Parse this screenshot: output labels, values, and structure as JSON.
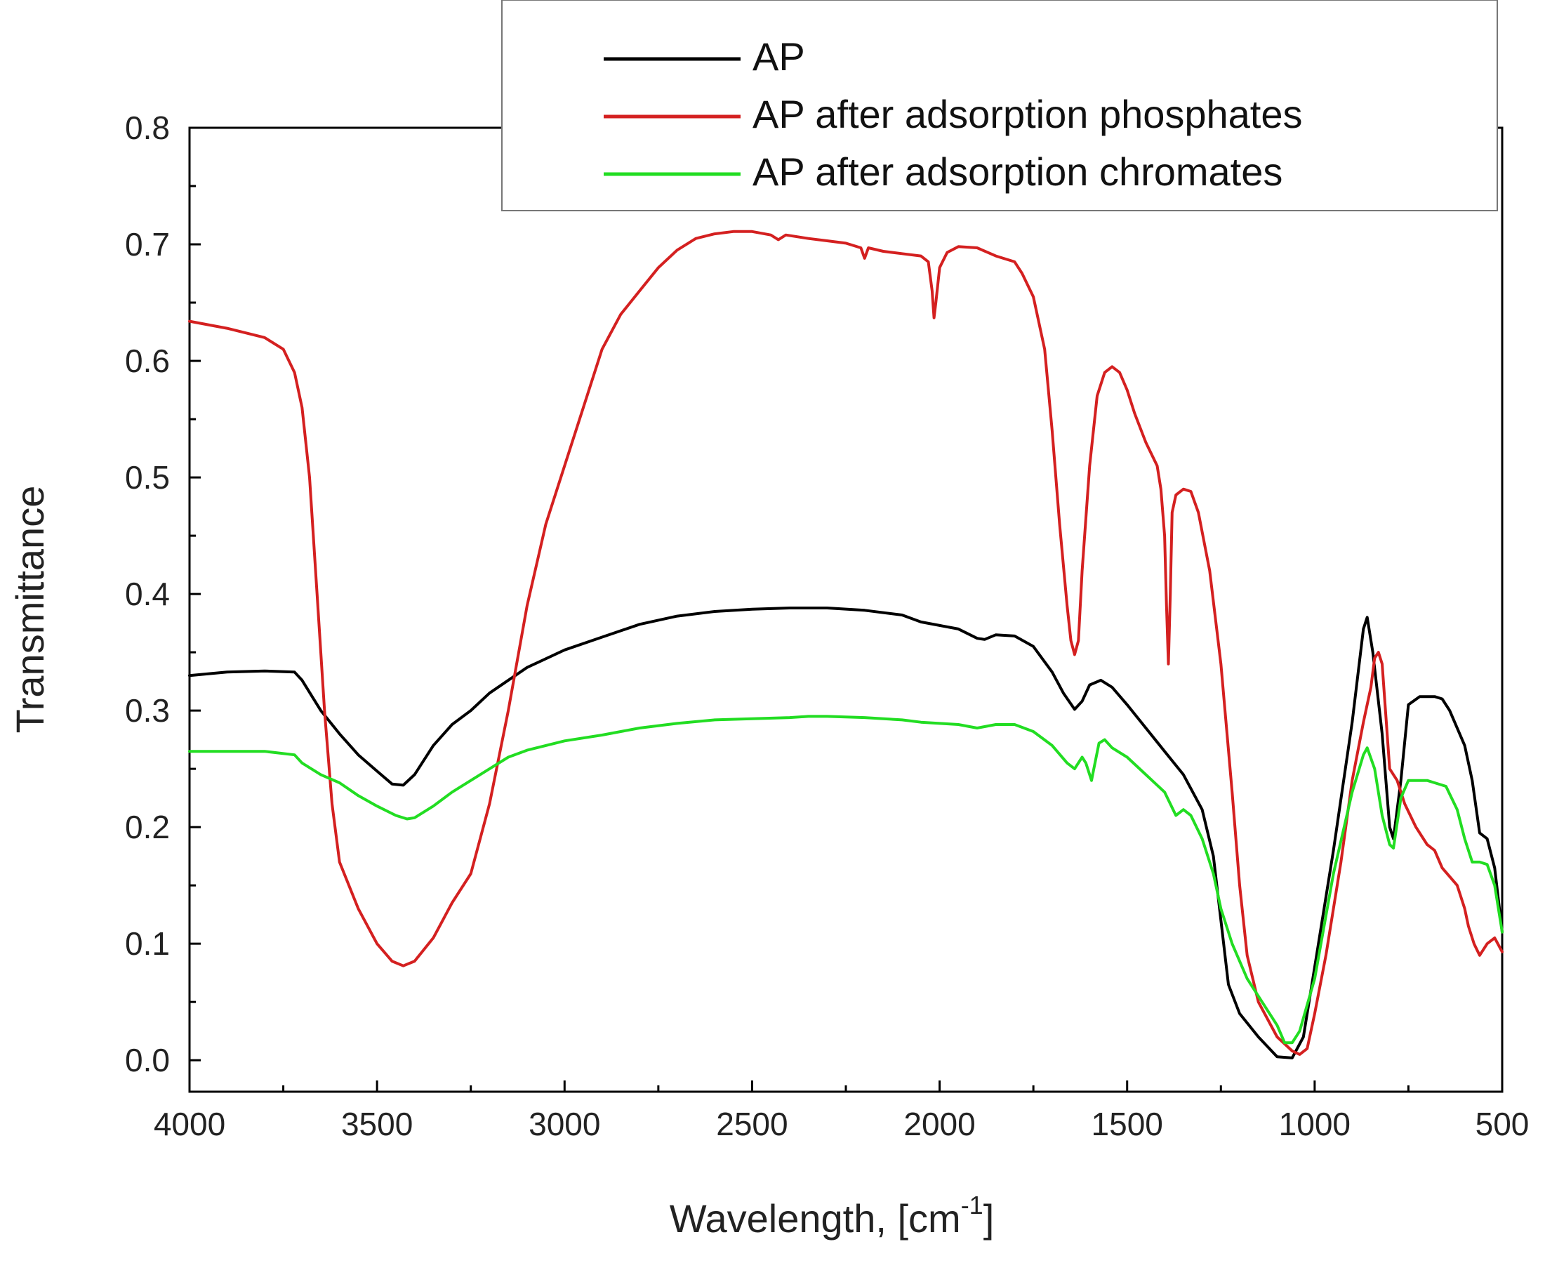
{
  "chart_data": {
    "type": "line",
    "title": "",
    "xlabel": "Wavelength, [cm",
    "xlabel_sup": "-1",
    "xlabel_suffix": "]",
    "ylabel": "Transmittance",
    "xlim": [
      4000,
      500
    ],
    "ylim": [
      -0.027,
      0.8
    ],
    "x_reversed": true,
    "grid": false,
    "legend_position": "top-right",
    "x_ticks": [
      4000,
      3500,
      3000,
      2500,
      2000,
      1500,
      1000,
      500
    ],
    "x_tick_labels": [
      "4000",
      "3500",
      "3000",
      "2500",
      "2000",
      "1500",
      "1000",
      "500"
    ],
    "y_ticks": [
      0.0,
      0.1,
      0.2,
      0.3,
      0.4,
      0.5,
      0.6,
      0.7,
      0.8
    ],
    "y_tick_labels": [
      "0.0",
      "0.1",
      "0.2",
      "0.3",
      "0.4",
      "0.5",
      "0.6",
      "0.7",
      "0.8"
    ],
    "series": [
      {
        "name": "AP",
        "color": "#000000",
        "points": [
          [
            4000,
            0.33
          ],
          [
            3900,
            0.333
          ],
          [
            3800,
            0.334
          ],
          [
            3720,
            0.333
          ],
          [
            3700,
            0.326
          ],
          [
            3650,
            0.3
          ],
          [
            3600,
            0.28
          ],
          [
            3550,
            0.262
          ],
          [
            3500,
            0.248
          ],
          [
            3460,
            0.237
          ],
          [
            3430,
            0.236
          ],
          [
            3400,
            0.245
          ],
          [
            3350,
            0.27
          ],
          [
            3300,
            0.288
          ],
          [
            3250,
            0.3
          ],
          [
            3200,
            0.315
          ],
          [
            3100,
            0.337
          ],
          [
            3000,
            0.352
          ],
          [
            2900,
            0.363
          ],
          [
            2800,
            0.374
          ],
          [
            2700,
            0.381
          ],
          [
            2600,
            0.385
          ],
          [
            2500,
            0.387
          ],
          [
            2400,
            0.388
          ],
          [
            2350,
            0.388
          ],
          [
            2300,
            0.388
          ],
          [
            2200,
            0.386
          ],
          [
            2100,
            0.382
          ],
          [
            2050,
            0.376
          ],
          [
            2000,
            0.373
          ],
          [
            1950,
            0.37
          ],
          [
            1900,
            0.362
          ],
          [
            1880,
            0.361
          ],
          [
            1850,
            0.365
          ],
          [
            1800,
            0.364
          ],
          [
            1750,
            0.355
          ],
          [
            1700,
            0.333
          ],
          [
            1670,
            0.315
          ],
          [
            1640,
            0.301
          ],
          [
            1620,
            0.308
          ],
          [
            1600,
            0.322
          ],
          [
            1570,
            0.326
          ],
          [
            1540,
            0.32
          ],
          [
            1500,
            0.305
          ],
          [
            1450,
            0.285
          ],
          [
            1400,
            0.265
          ],
          [
            1350,
            0.245
          ],
          [
            1300,
            0.215
          ],
          [
            1270,
            0.175
          ],
          [
            1250,
            0.12
          ],
          [
            1230,
            0.065
          ],
          [
            1200,
            0.04
          ],
          [
            1150,
            0.02
          ],
          [
            1100,
            0.003
          ],
          [
            1060,
            0.002
          ],
          [
            1030,
            0.02
          ],
          [
            1000,
            0.08
          ],
          [
            950,
            0.18
          ],
          [
            900,
            0.29
          ],
          [
            870,
            0.37
          ],
          [
            860,
            0.38
          ],
          [
            845,
            0.35
          ],
          [
            820,
            0.28
          ],
          [
            800,
            0.2
          ],
          [
            790,
            0.19
          ],
          [
            770,
            0.24
          ],
          [
            750,
            0.305
          ],
          [
            720,
            0.312
          ],
          [
            700,
            0.312
          ],
          [
            680,
            0.312
          ],
          [
            660,
            0.31
          ],
          [
            640,
            0.3
          ],
          [
            600,
            0.27
          ],
          [
            580,
            0.24
          ],
          [
            560,
            0.195
          ],
          [
            540,
            0.19
          ],
          [
            520,
            0.165
          ],
          [
            500,
            0.11
          ]
        ]
      },
      {
        "name": "AP after adsorption phosphates",
        "color": "#d42020",
        "points": [
          [
            4000,
            0.634
          ],
          [
            3900,
            0.628
          ],
          [
            3800,
            0.62
          ],
          [
            3750,
            0.61
          ],
          [
            3720,
            0.59
          ],
          [
            3700,
            0.56
          ],
          [
            3680,
            0.5
          ],
          [
            3660,
            0.4
          ],
          [
            3640,
            0.3
          ],
          [
            3620,
            0.22
          ],
          [
            3600,
            0.17
          ],
          [
            3550,
            0.13
          ],
          [
            3500,
            0.1
          ],
          [
            3460,
            0.085
          ],
          [
            3430,
            0.081
          ],
          [
            3400,
            0.085
          ],
          [
            3350,
            0.105
          ],
          [
            3300,
            0.135
          ],
          [
            3250,
            0.16
          ],
          [
            3200,
            0.22
          ],
          [
            3150,
            0.3
          ],
          [
            3100,
            0.39
          ],
          [
            3050,
            0.46
          ],
          [
            3000,
            0.51
          ],
          [
            2950,
            0.56
          ],
          [
            2900,
            0.61
          ],
          [
            2850,
            0.64
          ],
          [
            2800,
            0.66
          ],
          [
            2750,
            0.68
          ],
          [
            2700,
            0.695
          ],
          [
            2650,
            0.705
          ],
          [
            2600,
            0.709
          ],
          [
            2550,
            0.711
          ],
          [
            2500,
            0.711
          ],
          [
            2450,
            0.708
          ],
          [
            2430,
            0.704
          ],
          [
            2410,
            0.708
          ],
          [
            2350,
            0.705
          ],
          [
            2300,
            0.703
          ],
          [
            2250,
            0.701
          ],
          [
            2210,
            0.697
          ],
          [
            2200,
            0.688
          ],
          [
            2190,
            0.697
          ],
          [
            2150,
            0.694
          ],
          [
            2100,
            0.692
          ],
          [
            2050,
            0.69
          ],
          [
            2030,
            0.685
          ],
          [
            2020,
            0.66
          ],
          [
            2015,
            0.637
          ],
          [
            2010,
            0.65
          ],
          [
            2000,
            0.68
          ],
          [
            1980,
            0.693
          ],
          [
            1950,
            0.698
          ],
          [
            1900,
            0.697
          ],
          [
            1850,
            0.69
          ],
          [
            1800,
            0.685
          ],
          [
            1780,
            0.675
          ],
          [
            1750,
            0.655
          ],
          [
            1720,
            0.61
          ],
          [
            1700,
            0.54
          ],
          [
            1680,
            0.46
          ],
          [
            1660,
            0.39
          ],
          [
            1650,
            0.36
          ],
          [
            1640,
            0.348
          ],
          [
            1630,
            0.36
          ],
          [
            1620,
            0.42
          ],
          [
            1600,
            0.51
          ],
          [
            1580,
            0.57
          ],
          [
            1560,
            0.59
          ],
          [
            1540,
            0.595
          ],
          [
            1520,
            0.59
          ],
          [
            1500,
            0.575
          ],
          [
            1480,
            0.555
          ],
          [
            1450,
            0.53
          ],
          [
            1420,
            0.51
          ],
          [
            1410,
            0.49
          ],
          [
            1400,
            0.45
          ],
          [
            1395,
            0.39
          ],
          [
            1390,
            0.34
          ],
          [
            1385,
            0.4
          ],
          [
            1380,
            0.47
          ],
          [
            1370,
            0.485
          ],
          [
            1350,
            0.49
          ],
          [
            1330,
            0.488
          ],
          [
            1310,
            0.47
          ],
          [
            1280,
            0.42
          ],
          [
            1250,
            0.34
          ],
          [
            1220,
            0.23
          ],
          [
            1200,
            0.15
          ],
          [
            1180,
            0.09
          ],
          [
            1150,
            0.05
          ],
          [
            1100,
            0.02
          ],
          [
            1060,
            0.008
          ],
          [
            1040,
            0.005
          ],
          [
            1020,
            0.01
          ],
          [
            1000,
            0.04
          ],
          [
            970,
            0.09
          ],
          [
            930,
            0.17
          ],
          [
            900,
            0.24
          ],
          [
            870,
            0.29
          ],
          [
            850,
            0.32
          ],
          [
            840,
            0.345
          ],
          [
            830,
            0.35
          ],
          [
            820,
            0.34
          ],
          [
            800,
            0.25
          ],
          [
            780,
            0.24
          ],
          [
            760,
            0.22
          ],
          [
            730,
            0.2
          ],
          [
            700,
            0.185
          ],
          [
            680,
            0.18
          ],
          [
            660,
            0.165
          ],
          [
            620,
            0.15
          ],
          [
            600,
            0.13
          ],
          [
            590,
            0.115
          ],
          [
            575,
            0.1
          ],
          [
            560,
            0.09
          ],
          [
            540,
            0.1
          ],
          [
            520,
            0.105
          ],
          [
            500,
            0.093
          ]
        ]
      },
      {
        "name": "AP after adsorption chromates",
        "color": "#22dd22",
        "points": [
          [
            4000,
            0.265
          ],
          [
            3900,
            0.265
          ],
          [
            3800,
            0.265
          ],
          [
            3720,
            0.262
          ],
          [
            3700,
            0.255
          ],
          [
            3650,
            0.245
          ],
          [
            3600,
            0.238
          ],
          [
            3550,
            0.227
          ],
          [
            3500,
            0.218
          ],
          [
            3450,
            0.21
          ],
          [
            3420,
            0.207
          ],
          [
            3400,
            0.208
          ],
          [
            3350,
            0.218
          ],
          [
            3300,
            0.23
          ],
          [
            3250,
            0.24
          ],
          [
            3200,
            0.25
          ],
          [
            3150,
            0.26
          ],
          [
            3100,
            0.266
          ],
          [
            3000,
            0.274
          ],
          [
            2900,
            0.279
          ],
          [
            2800,
            0.285
          ],
          [
            2700,
            0.289
          ],
          [
            2600,
            0.292
          ],
          [
            2500,
            0.293
          ],
          [
            2400,
            0.294
          ],
          [
            2350,
            0.295
          ],
          [
            2300,
            0.295
          ],
          [
            2200,
            0.294
          ],
          [
            2100,
            0.292
          ],
          [
            2050,
            0.29
          ],
          [
            2000,
            0.289
          ],
          [
            1950,
            0.288
          ],
          [
            1900,
            0.285
          ],
          [
            1850,
            0.288
          ],
          [
            1800,
            0.288
          ],
          [
            1750,
            0.282
          ],
          [
            1700,
            0.27
          ],
          [
            1660,
            0.255
          ],
          [
            1640,
            0.25
          ],
          [
            1620,
            0.26
          ],
          [
            1610,
            0.255
          ],
          [
            1595,
            0.24
          ],
          [
            1590,
            0.248
          ],
          [
            1575,
            0.272
          ],
          [
            1560,
            0.275
          ],
          [
            1540,
            0.268
          ],
          [
            1500,
            0.26
          ],
          [
            1450,
            0.245
          ],
          [
            1400,
            0.23
          ],
          [
            1370,
            0.21
          ],
          [
            1350,
            0.215
          ],
          [
            1330,
            0.21
          ],
          [
            1300,
            0.19
          ],
          [
            1270,
            0.16
          ],
          [
            1250,
            0.13
          ],
          [
            1220,
            0.1
          ],
          [
            1180,
            0.07
          ],
          [
            1150,
            0.055
          ],
          [
            1100,
            0.03
          ],
          [
            1080,
            0.015
          ],
          [
            1060,
            0.015
          ],
          [
            1040,
            0.025
          ],
          [
            1000,
            0.07
          ],
          [
            950,
            0.16
          ],
          [
            900,
            0.23
          ],
          [
            870,
            0.262
          ],
          [
            860,
            0.268
          ],
          [
            840,
            0.25
          ],
          [
            820,
            0.21
          ],
          [
            800,
            0.185
          ],
          [
            790,
            0.182
          ],
          [
            770,
            0.225
          ],
          [
            750,
            0.24
          ],
          [
            700,
            0.24
          ],
          [
            680,
            0.238
          ],
          [
            650,
            0.235
          ],
          [
            620,
            0.215
          ],
          [
            600,
            0.19
          ],
          [
            580,
            0.17
          ],
          [
            560,
            0.17
          ],
          [
            540,
            0.168
          ],
          [
            520,
            0.15
          ],
          [
            500,
            0.11
          ]
        ]
      }
    ]
  }
}
